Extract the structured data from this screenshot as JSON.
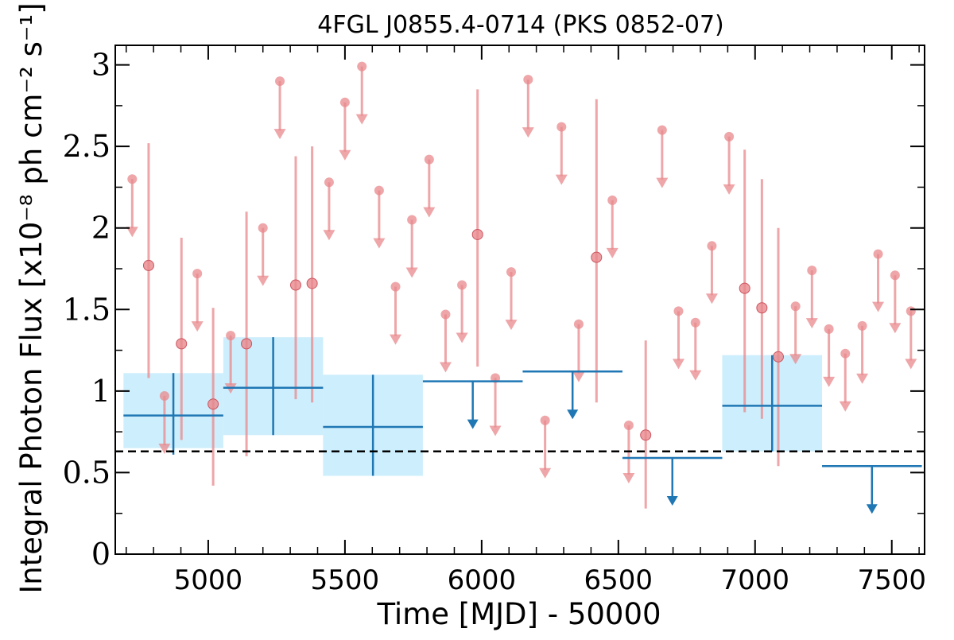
{
  "chart_data": {
    "type": "scatter",
    "title": "4FGL J0855.4-0714 (PKS 0852-07)",
    "xlabel": "Time [MJD] - 50000",
    "ylabel": "Integral Photon Flux [x10⁻⁸ ph cm⁻² s⁻¹]",
    "xlim": [
      4660,
      7620
    ],
    "ylim": [
      0,
      3.12
    ],
    "x_ticks": [
      5000,
      5500,
      6000,
      6500,
      7000,
      7500
    ],
    "y_ticks": [
      0,
      0.5,
      1,
      1.5,
      2,
      2.5,
      3
    ],
    "y_tick_labels": [
      "0",
      "0.5",
      "1",
      "1.5",
      "2",
      "2.5",
      "3"
    ],
    "reference_line": 0.63,
    "colors": {
      "short_bins": "#e8888c",
      "long_bins": "#1f77b4",
      "long_bins_band": "#cdeefc",
      "reference": "#000000"
    },
    "short_bin_detections": [
      {
        "x": 4782,
        "y": 1.77,
        "ylo": 1.08,
        "yhi": 2.52
      },
      {
        "x": 4902,
        "y": 1.29,
        "ylo": 0.7,
        "yhi": 1.94
      },
      {
        "x": 5018,
        "y": 0.92,
        "ylo": 0.42,
        "yhi": 1.51
      },
      {
        "x": 5140,
        "y": 1.29,
        "ylo": 0.6,
        "yhi": 2.1
      },
      {
        "x": 5320,
        "y": 1.65,
        "ylo": 0.95,
        "yhi": 2.44
      },
      {
        "x": 5380,
        "y": 1.66,
        "ylo": 0.93,
        "yhi": 2.5
      },
      {
        "x": 5985,
        "y": 1.96,
        "ylo": 1.15,
        "yhi": 2.85
      },
      {
        "x": 6420,
        "y": 1.82,
        "ylo": 0.93,
        "yhi": 2.79
      },
      {
        "x": 6600,
        "y": 0.73,
        "ylo": 0.28,
        "yhi": 1.31
      },
      {
        "x": 6962,
        "y": 1.63,
        "ylo": 0.87,
        "yhi": 2.48
      },
      {
        "x": 7025,
        "y": 1.51,
        "ylo": 0.83,
        "yhi": 2.3
      },
      {
        "x": 7085,
        "y": 1.21,
        "ylo": 0.54,
        "yhi": 2.0
      }
    ],
    "short_bin_upper_limits": [
      {
        "x": 4722,
        "y": 2.3
      },
      {
        "x": 4840,
        "y": 0.97
      },
      {
        "x": 4960,
        "y": 1.72
      },
      {
        "x": 5082,
        "y": 1.34
      },
      {
        "x": 5200,
        "y": 2.0
      },
      {
        "x": 5262,
        "y": 2.9
      },
      {
        "x": 5442,
        "y": 2.28
      },
      {
        "x": 5500,
        "y": 2.77
      },
      {
        "x": 5562,
        "y": 2.99
      },
      {
        "x": 5625,
        "y": 2.23
      },
      {
        "x": 5685,
        "y": 1.64
      },
      {
        "x": 5745,
        "y": 2.05
      },
      {
        "x": 5808,
        "y": 2.42
      },
      {
        "x": 5868,
        "y": 1.47
      },
      {
        "x": 5928,
        "y": 1.65
      },
      {
        "x": 6050,
        "y": 1.08
      },
      {
        "x": 6108,
        "y": 1.73
      },
      {
        "x": 6170,
        "y": 2.91
      },
      {
        "x": 6232,
        "y": 0.82
      },
      {
        "x": 6292,
        "y": 2.62
      },
      {
        "x": 6355,
        "y": 1.41
      },
      {
        "x": 6478,
        "y": 2.17
      },
      {
        "x": 6538,
        "y": 0.79
      },
      {
        "x": 6660,
        "y": 2.6
      },
      {
        "x": 6720,
        "y": 1.49
      },
      {
        "x": 6782,
        "y": 1.42
      },
      {
        "x": 6842,
        "y": 1.89
      },
      {
        "x": 6905,
        "y": 2.56
      },
      {
        "x": 7148,
        "y": 1.52
      },
      {
        "x": 7208,
        "y": 1.74
      },
      {
        "x": 7270,
        "y": 1.38
      },
      {
        "x": 7330,
        "y": 1.23
      },
      {
        "x": 7392,
        "y": 1.4
      },
      {
        "x": 7450,
        "y": 1.84
      },
      {
        "x": 7512,
        "y": 1.71
      },
      {
        "x": 7570,
        "y": 1.49
      }
    ],
    "long_bin_detections": [
      {
        "x0": 4690,
        "x1": 5055,
        "y": 0.85,
        "ylo": 0.61,
        "yhi": 1.11,
        "band_lo": 0.65,
        "band_hi": 1.11
      },
      {
        "x0": 5055,
        "x1": 5420,
        "y": 1.02,
        "ylo": 0.73,
        "yhi": 1.33,
        "band_lo": 0.73,
        "band_hi": 1.33
      },
      {
        "x0": 5420,
        "x1": 5785,
        "y": 0.78,
        "ylo": 0.48,
        "yhi": 1.1,
        "band_lo": 0.48,
        "band_hi": 1.1
      },
      {
        "x0": 6880,
        "x1": 7245,
        "y": 0.91,
        "ylo": 0.63,
        "yhi": 1.22,
        "band_lo": 0.63,
        "band_hi": 1.22
      }
    ],
    "long_bin_upper_limits": [
      {
        "x0": 5785,
        "x1": 6150,
        "y": 1.06
      },
      {
        "x0": 6150,
        "x1": 6515,
        "y": 1.12
      },
      {
        "x0": 6515,
        "x1": 6880,
        "y": 0.59
      },
      {
        "x0": 7245,
        "x1": 7610,
        "y": 0.54
      }
    ]
  }
}
